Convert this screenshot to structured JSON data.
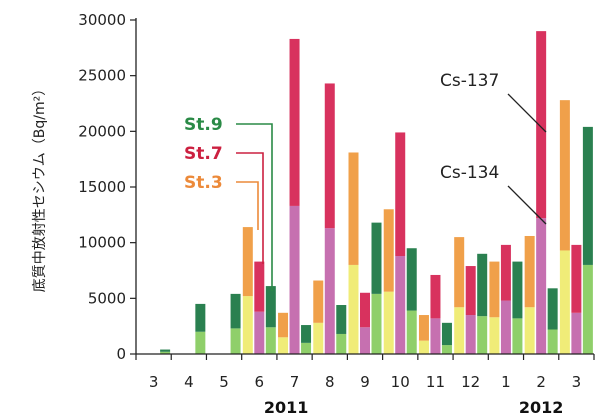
{
  "chart_data": {
    "type": "bar",
    "subtype": "grouped-stacked",
    "ylabel": "底質中放射性セシウム（Bq/m²）",
    "ylim": [
      0,
      30000
    ],
    "yticks": [
      0,
      5000,
      10000,
      15000,
      20000,
      25000,
      30000
    ],
    "ytick_labels": [
      "0",
      "5000",
      "10000",
      "15000",
      "20000",
      "25000",
      "30000"
    ],
    "grid": false,
    "categories": [
      "3",
      "4",
      "5",
      "6",
      "7",
      "8",
      "9",
      "10",
      "11",
      "12",
      "1",
      "2",
      "3"
    ],
    "years": [
      {
        "label": "2011",
        "from": 0,
        "to": 9
      },
      {
        "label": "2012",
        "from": 10,
        "to": 12
      }
    ],
    "series": [
      {
        "name": "St.3",
        "cs134": [
          null,
          null,
          null,
          5200,
          1500,
          2800,
          8000,
          5600,
          1200,
          4200,
          3300,
          4200,
          9300
        ],
        "cs137": [
          null,
          null,
          null,
          6200,
          2200,
          3800,
          10100,
          7400,
          2300,
          6300,
          5000,
          6400,
          13500
        ],
        "color_cs134": "#f0ec78",
        "color_cs137": "#f0a04a"
      },
      {
        "name": "St.7",
        "cs134": [
          null,
          null,
          null,
          3800,
          13300,
          11300,
          2400,
          8800,
          3200,
          3500,
          4800,
          12200,
          3700
        ],
        "cs137": [
          null,
          null,
          null,
          4500,
          15000,
          13000,
          3100,
          11100,
          3900,
          4400,
          5000,
          16800,
          6100
        ],
        "color_cs134": "#c670b0",
        "color_cs137": "#d8325e"
      },
      {
        "name": "St.9",
        "cs134": [
          200,
          2000,
          2300,
          2400,
          1000,
          1800,
          5400,
          3900,
          800,
          3400,
          3200,
          2200,
          8000
        ],
        "cs137": [
          200,
          2500,
          3100,
          3700,
          1600,
          2600,
          6400,
          5600,
          2000,
          5600,
          5100,
          3700,
          12400
        ],
        "color_cs134": "#8fcf6a",
        "color_cs137": "#2a8050"
      }
    ],
    "legend": [
      {
        "label": "St.9",
        "color": "#2a8a46"
      },
      {
        "label": "St.7",
        "color": "#cc2040"
      },
      {
        "label": "St.3",
        "color": "#ec8a3a"
      }
    ],
    "annotations": [
      {
        "label": "Cs-137"
      },
      {
        "label": "Cs-134"
      }
    ]
  }
}
